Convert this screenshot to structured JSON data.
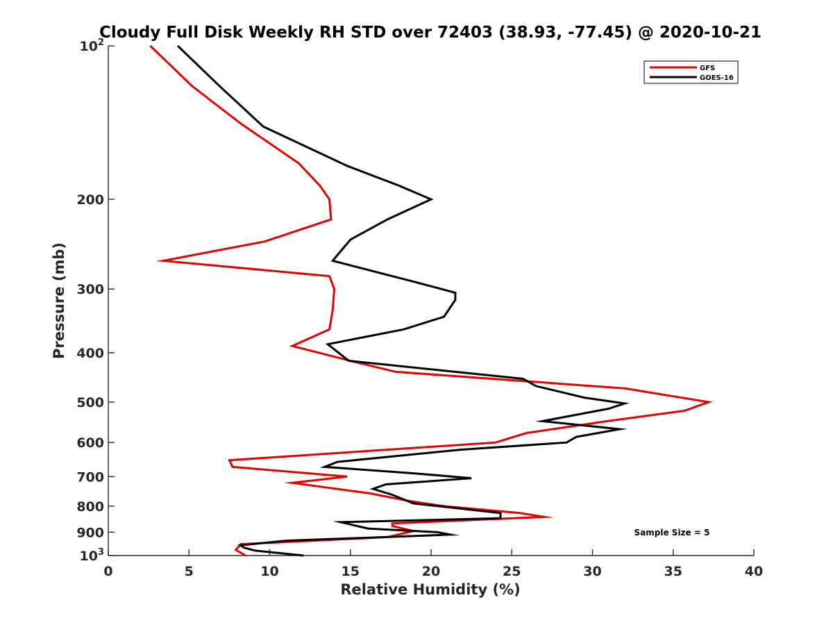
{
  "chart_data": {
    "type": "line",
    "title": "Cloudy Full Disk Weekly RH STD over 72403 (38.93, -77.45) @ 2020-10-21",
    "xlabel": "Relative Humidity (%)",
    "ylabel": "Pressure (mb)",
    "xlim": [
      0,
      40
    ],
    "ylim": [
      100,
      1000
    ],
    "y_scale": "log",
    "y_reversed": true,
    "x_ticks": [
      0,
      5,
      10,
      15,
      20,
      25,
      30,
      35,
      40
    ],
    "x_tick_labels": [
      "0",
      "5",
      "10",
      "15",
      "20",
      "25",
      "30",
      "35",
      "40"
    ],
    "y_ticks": [
      100,
      200,
      300,
      400,
      500,
      600,
      700,
      800,
      900,
      1000
    ],
    "y_tick_labels": [
      {
        "base": "10",
        "exp": "2"
      },
      {
        "base": "200"
      },
      {
        "base": "300"
      },
      {
        "base": "400"
      },
      {
        "base": "500"
      },
      {
        "base": "600"
      },
      {
        "base": "700"
      },
      {
        "base": "800"
      },
      {
        "base": "900"
      },
      {
        "base": "10",
        "exp": "3"
      }
    ],
    "legend_position": "top-right",
    "grid": false,
    "annotation": "Sample Size = 5",
    "series": [
      {
        "name": "GFS",
        "color": "#e00000",
        "points": [
          [
            2.6,
            100
          ],
          [
            5.2,
            120
          ],
          [
            8.2,
            142
          ],
          [
            11.8,
            170
          ],
          [
            13.1,
            188
          ],
          [
            13.7,
            200
          ],
          [
            13.8,
            219
          ],
          [
            9.7,
            242
          ],
          [
            3.4,
            264
          ],
          [
            13.7,
            283
          ],
          [
            14.0,
            300
          ],
          [
            13.9,
            330
          ],
          [
            13.7,
            360
          ],
          [
            11.4,
            388
          ],
          [
            15.0,
            415
          ],
          [
            17.8,
            436
          ],
          [
            32.0,
            470
          ],
          [
            37.2,
            500
          ],
          [
            35.7,
            520
          ],
          [
            30.9,
            545
          ],
          [
            25.9,
            575
          ],
          [
            24.0,
            600
          ],
          [
            7.5,
            650
          ],
          [
            7.7,
            670
          ],
          [
            14.8,
            700
          ],
          [
            11.4,
            720
          ],
          [
            16.2,
            755
          ],
          [
            18.5,
            780
          ],
          [
            20.8,
            800
          ],
          [
            25.5,
            825
          ],
          [
            27.0,
            840
          ],
          [
            17.6,
            865
          ],
          [
            17.6,
            875
          ],
          [
            18.9,
            895
          ],
          [
            17.3,
            920
          ],
          [
            8.2,
            950
          ],
          [
            7.9,
            975
          ],
          [
            8.5,
            1000
          ]
        ]
      },
      {
        "name": "GOES-16",
        "color": "#000000",
        "points": [
          [
            4.3,
            100
          ],
          [
            6.9,
            120
          ],
          [
            9.6,
            144
          ],
          [
            14.8,
            172
          ],
          [
            18.0,
            188
          ],
          [
            20.0,
            200
          ],
          [
            17.3,
            219
          ],
          [
            15.0,
            240
          ],
          [
            13.9,
            264
          ],
          [
            18.9,
            290
          ],
          [
            21.5,
            305
          ],
          [
            21.5,
            315
          ],
          [
            20.8,
            340
          ],
          [
            18.3,
            360
          ],
          [
            13.6,
            385
          ],
          [
            14.9,
            415
          ],
          [
            25.7,
            450
          ],
          [
            26.5,
            465
          ],
          [
            29.5,
            490
          ],
          [
            32.0,
            503
          ],
          [
            31.0,
            515
          ],
          [
            26.9,
            545
          ],
          [
            31.7,
            565
          ],
          [
            29.0,
            585
          ],
          [
            28.4,
            600
          ],
          [
            21.8,
            620
          ],
          [
            14.2,
            655
          ],
          [
            13.4,
            670
          ],
          [
            19.0,
            690
          ],
          [
            22.5,
            705
          ],
          [
            17.2,
            725
          ],
          [
            16.4,
            740
          ],
          [
            17.6,
            760
          ],
          [
            18.9,
            790
          ],
          [
            24.3,
            825
          ],
          [
            24.3,
            845
          ],
          [
            14.4,
            860
          ],
          [
            16.1,
            885
          ],
          [
            20.4,
            900
          ],
          [
            21.2,
            910
          ],
          [
            11.0,
            935
          ],
          [
            8.2,
            955
          ],
          [
            8.4,
            965
          ],
          [
            9.1,
            978
          ],
          [
            12.1,
            1000
          ]
        ]
      }
    ]
  }
}
